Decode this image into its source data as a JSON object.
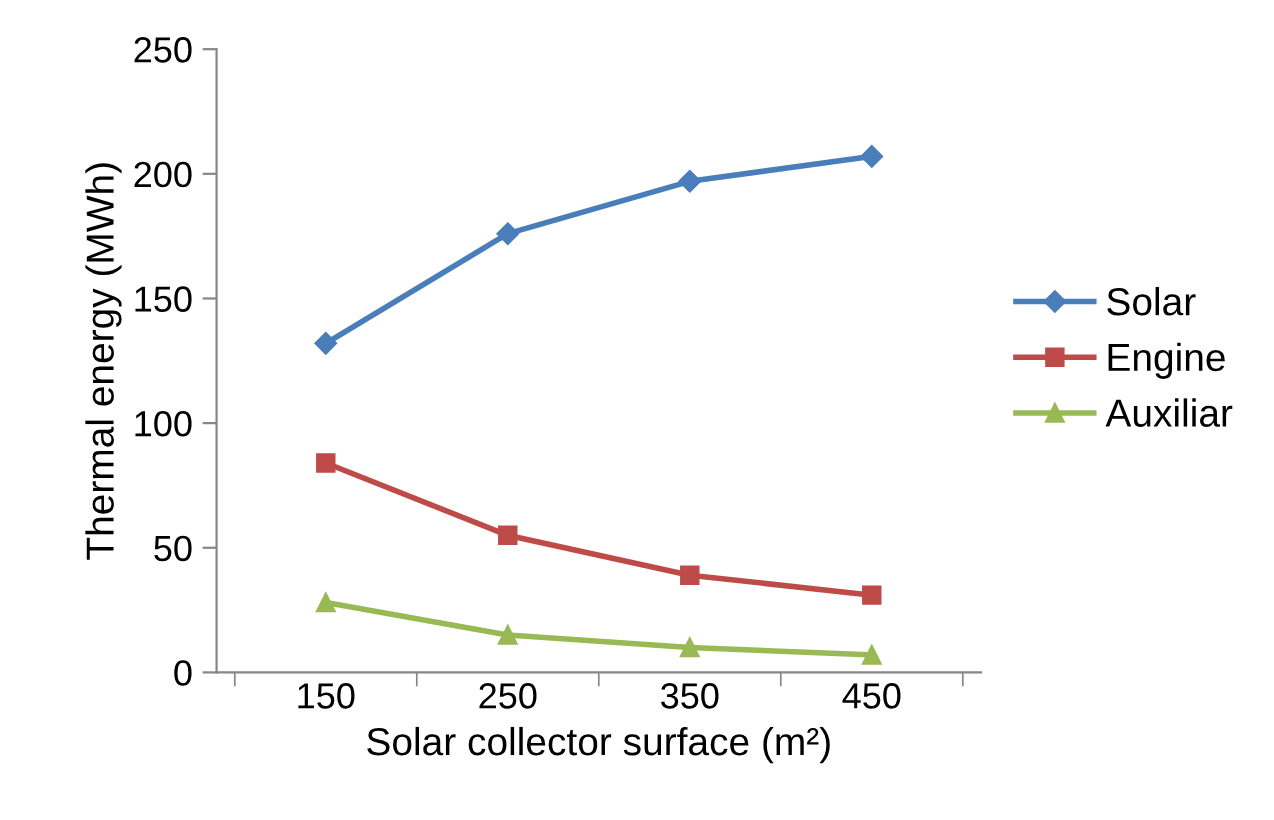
{
  "chart_data": {
    "type": "line",
    "xlabel": "Solar collector surface (m²)",
    "ylabel": "Thermal energy (MWh)",
    "categories": [
      "150",
      "250",
      "350",
      "450"
    ],
    "series": [
      {
        "name": "Solar",
        "color": "#4a7ebb",
        "marker": "diamond",
        "values": [
          132,
          176,
          197,
          207
        ]
      },
      {
        "name": "Engine",
        "color": "#be4b48",
        "marker": "square",
        "values": [
          84,
          55,
          39,
          31
        ]
      },
      {
        "name": "Auxiliar",
        "color": "#98b954",
        "marker": "triangle",
        "values": [
          28,
          15,
          10,
          7
        ]
      }
    ],
    "ylim": [
      0,
      250
    ],
    "yticks": [
      0,
      50,
      100,
      150,
      200,
      250
    ],
    "grid": false,
    "legend": "right",
    "line_style": "solid"
  }
}
